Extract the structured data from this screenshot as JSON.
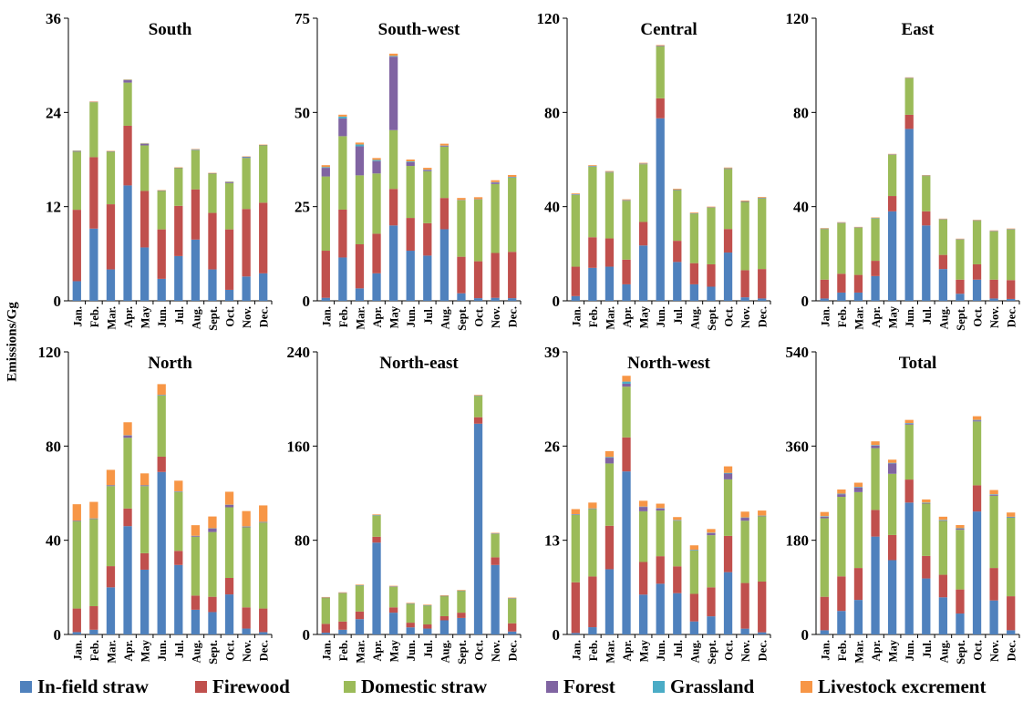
{
  "ylabel": "Emissions/Gg",
  "legend": [
    {
      "name": "In-field straw",
      "color": "#4F81BD"
    },
    {
      "name": "Firewood",
      "color": "#C0504D"
    },
    {
      "name": "Domestic straw",
      "color": "#9BBB59"
    },
    {
      "name": "Forest",
      "color": "#8064A2"
    },
    {
      "name": "Grassland",
      "color": "#4BACC6"
    },
    {
      "name": "Livestock excrement",
      "color": "#F79646"
    }
  ],
  "chart_data": [
    {
      "type": "bar",
      "stacked": true,
      "title": "South",
      "ylim": [
        0,
        36
      ],
      "yticks": [
        "0",
        "12",
        "24",
        "36"
      ],
      "categories": [
        "Jan.",
        "Feb.",
        "Mar.",
        "Apr.",
        "May",
        "Jun.",
        "Jul.",
        "Aug.",
        "Sept.",
        "Oct.",
        "Nov.",
        "Dec."
      ],
      "series": [
        {
          "name": "In-field straw",
          "values": [
            2.5,
            9.2,
            4.0,
            14.7,
            6.8,
            2.8,
            5.7,
            7.8,
            4.0,
            1.4,
            3.1,
            3.5
          ]
        },
        {
          "name": "Firewood",
          "values": [
            9.1,
            9.1,
            8.3,
            7.6,
            7.2,
            6.3,
            6.4,
            6.4,
            7.2,
            7.7,
            8.6,
            9.0
          ]
        },
        {
          "name": "Domestic straw",
          "values": [
            7.4,
            7.0,
            6.7,
            5.5,
            5.8,
            4.9,
            4.8,
            5.0,
            5.0,
            5.9,
            6.5,
            7.3
          ]
        },
        {
          "name": "Forest",
          "values": [
            0.05,
            0.05,
            0.05,
            0.3,
            0.2,
            0.05,
            0.05,
            0.05,
            0.05,
            0.1,
            0.1,
            0.05
          ]
        },
        {
          "name": "Grassland",
          "values": [
            0.05,
            0.0,
            0.0,
            0.05,
            0.05,
            0.0,
            0.0,
            0.05,
            0.0,
            0.05,
            0.05,
            0.0
          ]
        },
        {
          "name": "Livestock excrement",
          "values": [
            0.05,
            0.05,
            0.05,
            0.05,
            0.05,
            0.05,
            0.05,
            0.05,
            0.05,
            0.05,
            0.05,
            0.05
          ]
        }
      ]
    },
    {
      "type": "bar",
      "stacked": true,
      "title": "South-west",
      "ylim": [
        0,
        75
      ],
      "yticks": [
        "0",
        "25",
        "50",
        "75"
      ],
      "categories": [
        "Jan.",
        "Feb.",
        "Mar.",
        "Apr.",
        "May",
        "Jun.",
        "Jul.",
        "Aug.",
        "Sept.",
        "Oct.",
        "Nov.",
        "Dec."
      ],
      "series": [
        {
          "name": "In-field straw",
          "values": [
            0.8,
            11.5,
            3.3,
            7.3,
            20.0,
            13.3,
            12.0,
            19.0,
            2.0,
            0.7,
            0.8,
            0.7
          ]
        },
        {
          "name": "Firewood",
          "values": [
            12.5,
            12.7,
            11.7,
            10.5,
            9.7,
            8.7,
            8.6,
            8.3,
            9.7,
            9.8,
            11.9,
            12.3
          ]
        },
        {
          "name": "Domestic straw",
          "values": [
            19.7,
            19.5,
            18.3,
            16.0,
            15.6,
            13.8,
            13.8,
            13.6,
            15.0,
            16.4,
            18.3,
            19.7
          ]
        },
        {
          "name": "Forest",
          "values": [
            2.3,
            4.7,
            7.7,
            3.3,
            19.5,
            1.0,
            0.3,
            0.2,
            0.1,
            0.1,
            0.4,
            0.1
          ]
        },
        {
          "name": "Grassland",
          "values": [
            0.2,
            0.5,
            0.5,
            0.3,
            0.2,
            0.2,
            0.1,
            0.1,
            0.0,
            0.0,
            0.1,
            0.1
          ]
        },
        {
          "name": "Livestock excrement",
          "values": [
            0.5,
            0.5,
            0.5,
            0.5,
            0.6,
            0.5,
            0.5,
            0.5,
            0.5,
            0.5,
            0.5,
            0.5
          ]
        }
      ]
    },
    {
      "type": "bar",
      "stacked": true,
      "title": "Central",
      "ylim": [
        0,
        120
      ],
      "yticks": [
        "0",
        "40",
        "80",
        "120"
      ],
      "categories": [
        "Jan.",
        "Feb.",
        "Mar.",
        "Apr.",
        "May",
        "Jun.",
        "Jul.",
        "Aug.",
        "Sept.",
        "Oct.",
        "Nov.",
        "Dec."
      ],
      "series": [
        {
          "name": "In-field straw",
          "values": [
            2.0,
            14.0,
            14.5,
            7.0,
            23.5,
            77.5,
            16.5,
            7.0,
            6.0,
            20.5,
            1.5,
            1.0
          ]
        },
        {
          "name": "Firewood",
          "values": [
            12.5,
            13.0,
            12.0,
            10.5,
            10.0,
            8.5,
            9.0,
            9.0,
            9.5,
            10.0,
            11.5,
            12.5
          ]
        },
        {
          "name": "Domestic straw",
          "values": [
            30.5,
            30.0,
            28.0,
            25.0,
            24.5,
            22.0,
            21.5,
            21.0,
            24.0,
            25.5,
            29.0,
            30.0
          ]
        },
        {
          "name": "Forest",
          "values": [
            0.2,
            0.2,
            0.2,
            0.2,
            0.2,
            0.2,
            0.2,
            0.1,
            0.1,
            0.2,
            0.2,
            0.2
          ]
        },
        {
          "name": "Grassland",
          "values": [
            0.1,
            0.1,
            0.1,
            0.1,
            0.1,
            0.1,
            0.1,
            0.1,
            0.1,
            0.1,
            0.1,
            0.1
          ]
        },
        {
          "name": "Livestock excrement",
          "values": [
            0.3,
            0.3,
            0.3,
            0.3,
            0.3,
            0.3,
            0.3,
            0.3,
            0.3,
            0.3,
            0.3,
            0.3
          ]
        }
      ]
    },
    {
      "type": "bar",
      "stacked": true,
      "title": "East",
      "ylim": [
        0,
        120
      ],
      "yticks": [
        "0",
        "40",
        "80",
        "120"
      ],
      "categories": [
        "Jan.",
        "Feb.",
        "Mar.",
        "Apr.",
        "May",
        "Jun.",
        "Jul.",
        "Aug.",
        "Sept.",
        "Oct.",
        "Nov.",
        "Dec."
      ],
      "series": [
        {
          "name": "In-field straw",
          "values": [
            1.0,
            3.5,
            3.5,
            10.5,
            38.0,
            73.0,
            32.0,
            13.5,
            3.0,
            9.0,
            1.0,
            0.8
          ]
        },
        {
          "name": "Firewood",
          "values": [
            8.0,
            8.0,
            7.5,
            6.5,
            6.5,
            6.0,
            6.0,
            6.0,
            6.0,
            6.5,
            8.0,
            8.0
          ]
        },
        {
          "name": "Domestic straw",
          "values": [
            21.5,
            21.5,
            20.0,
            18.0,
            17.5,
            15.5,
            15.0,
            15.0,
            17.0,
            18.5,
            20.5,
            21.5
          ]
        },
        {
          "name": "Forest",
          "values": [
            0.1,
            0.1,
            0.1,
            0.1,
            0.1,
            0.1,
            0.1,
            0.1,
            0.1,
            0.1,
            0.1,
            0.1
          ]
        },
        {
          "name": "Grassland",
          "values": [
            0.1,
            0.1,
            0.1,
            0.1,
            0.1,
            0.1,
            0.1,
            0.1,
            0.1,
            0.1,
            0.1,
            0.1
          ]
        },
        {
          "name": "Livestock excrement",
          "values": [
            0.2,
            0.2,
            0.2,
            0.2,
            0.2,
            0.2,
            0.2,
            0.2,
            0.2,
            0.2,
            0.2,
            0.2
          ]
        }
      ]
    },
    {
      "type": "bar",
      "stacked": true,
      "title": "North",
      "ylim": [
        0,
        120
      ],
      "yticks": [
        "0",
        "40",
        "80",
        "120"
      ],
      "categories": [
        "Jan.",
        "Feb.",
        "Mar.",
        "Apr.",
        "May",
        "Jun.",
        "Jul.",
        "Aug.",
        "Sept.",
        "Oct.",
        "Nov.",
        "Dec."
      ],
      "series": [
        {
          "name": "In-field straw",
          "values": [
            1.0,
            2.0,
            20.0,
            46.0,
            27.5,
            69.0,
            29.5,
            10.5,
            9.5,
            17.0,
            2.5,
            1.0
          ]
        },
        {
          "name": "Firewood",
          "values": [
            10.0,
            10.0,
            9.0,
            7.5,
            7.0,
            6.5,
            6.0,
            6.0,
            6.5,
            7.0,
            9.0,
            10.0
          ]
        },
        {
          "name": "Domestic straw",
          "values": [
            37.0,
            37.0,
            34.0,
            30.0,
            28.5,
            26.0,
            25.0,
            25.0,
            27.5,
            30.0,
            34.0,
            36.5
          ]
        },
        {
          "name": "Forest",
          "values": [
            0.2,
            0.2,
            0.3,
            1.0,
            0.3,
            0.2,
            0.2,
            0.3,
            1.5,
            1.0,
            0.3,
            0.2
          ]
        },
        {
          "name": "Grassland",
          "values": [
            0.1,
            0.1,
            0.1,
            0.1,
            0.1,
            0.1,
            0.1,
            0.1,
            0.1,
            0.1,
            0.1,
            0.1
          ]
        },
        {
          "name": "Livestock excrement",
          "values": [
            7.0,
            7.0,
            6.5,
            5.5,
            5.0,
            4.5,
            4.5,
            4.5,
            5.0,
            5.5,
            6.5,
            7.0
          ]
        }
      ]
    },
    {
      "type": "bar",
      "stacked": true,
      "title": "North-east",
      "ylim": [
        0,
        240
      ],
      "yticks": [
        "0",
        "80",
        "160",
        "240"
      ],
      "categories": [
        "Jan.",
        "Feb.",
        "Mar.",
        "Apr.",
        "May",
        "Jun.",
        "Jul.",
        "Aug.",
        "Sept.",
        "Oct.",
        "Nov.",
        "Dec."
      ],
      "series": [
        {
          "name": "In-field straw",
          "values": [
            1.5,
            4.0,
            13.0,
            78.0,
            18.5,
            6.0,
            5.0,
            12.0,
            14.0,
            179.0,
            59.0,
            2.5
          ]
        },
        {
          "name": "Firewood",
          "values": [
            7.5,
            7.0,
            6.5,
            5.0,
            4.5,
            4.0,
            3.5,
            3.5,
            4.5,
            5.5,
            6.5,
            7.0
          ]
        },
        {
          "name": "Domestic straw",
          "values": [
            22.0,
            24.0,
            22.0,
            18.0,
            17.5,
            16.0,
            16.0,
            17.0,
            18.5,
            18.0,
            20.0,
            21.0
          ]
        },
        {
          "name": "Forest",
          "values": [
            0.1,
            0.1,
            0.1,
            0.2,
            0.1,
            0.1,
            0.1,
            0.1,
            0.1,
            0.2,
            0.1,
            0.1
          ]
        },
        {
          "name": "Grassland",
          "values": [
            0.2,
            0.2,
            0.2,
            0.3,
            0.2,
            0.2,
            0.2,
            0.2,
            0.2,
            0.3,
            0.2,
            0.2
          ]
        },
        {
          "name": "Livestock excrement",
          "values": [
            0.5,
            0.5,
            0.5,
            0.5,
            0.5,
            0.5,
            0.5,
            0.5,
            0.5,
            0.5,
            0.5,
            0.5
          ]
        }
      ]
    },
    {
      "type": "bar",
      "stacked": true,
      "title": "North-west",
      "ylim": [
        0,
        39
      ],
      "yticks": [
        "0",
        "13",
        "26",
        "39"
      ],
      "categories": [
        "Jan.",
        "Feb.",
        "Mar.",
        "Apr.",
        "May",
        "Jun.",
        "Jul.",
        "Aug.",
        "Sept.",
        "Oct.",
        "Nov.",
        "Dec."
      ],
      "series": [
        {
          "name": "In-field straw",
          "values": [
            0.2,
            1.0,
            9.0,
            22.5,
            5.5,
            7.0,
            5.7,
            1.8,
            2.5,
            8.6,
            0.8,
            0.3
          ]
        },
        {
          "name": "Firewood",
          "values": [
            7.0,
            7.0,
            6.0,
            4.7,
            4.5,
            3.8,
            3.7,
            3.8,
            4.0,
            5.0,
            6.3,
            7.0
          ]
        },
        {
          "name": "Domestic straw",
          "values": [
            9.3,
            9.3,
            8.6,
            7.0,
            7.0,
            6.3,
            6.3,
            6.0,
            7.2,
            7.8,
            8.6,
            9.0
          ]
        },
        {
          "name": "Forest",
          "values": [
            0.05,
            0.05,
            0.8,
            0.4,
            0.6,
            0.3,
            0.05,
            0.05,
            0.3,
            0.8,
            0.4,
            0.05
          ]
        },
        {
          "name": "Grassland",
          "values": [
            0.05,
            0.05,
            0.1,
            0.3,
            0.05,
            0.05,
            0.05,
            0.05,
            0.05,
            0.1,
            0.05,
            0.05
          ]
        },
        {
          "name": "Livestock excrement",
          "values": [
            0.7,
            0.8,
            0.8,
            0.8,
            0.8,
            0.6,
            0.4,
            0.6,
            0.5,
            0.9,
            0.8,
            0.7
          ]
        }
      ]
    },
    {
      "type": "bar",
      "stacked": true,
      "title": "Total",
      "ylim": [
        0,
        540
      ],
      "yticks": [
        "0",
        "180",
        "360",
        "540"
      ],
      "categories": [
        "Jan.",
        "Feb.",
        "Mar.",
        "Apr.",
        "May",
        "Jun.",
        "Jul.",
        "Aug.",
        "Sept.",
        "Oct.",
        "Nov.",
        "Dec."
      ],
      "series": [
        {
          "name": "In-field straw",
          "values": [
            8.0,
            45.0,
            66.0,
            187.0,
            142.0,
            252.0,
            107.0,
            71.0,
            40.0,
            235.0,
            65.0,
            8.0
          ]
        },
        {
          "name": "Firewood",
          "values": [
            64.0,
            66.0,
            61.0,
            51.0,
            48.0,
            44.0,
            43.0,
            43.0,
            46.0,
            50.0,
            62.0,
            65.0
          ]
        },
        {
          "name": "Domestic straw",
          "values": [
            150.0,
            152.0,
            145.0,
            118.0,
            117.0,
            105.0,
            100.0,
            103.0,
            114.0,
            122.0,
            138.0,
            150.0
          ]
        },
        {
          "name": "Forest",
          "values": [
            3.0,
            5.0,
            9.0,
            5.0,
            20.0,
            2.0,
            1.0,
            1.0,
            2.0,
            2.0,
            2.0,
            1.0
          ]
        },
        {
          "name": "Grassland",
          "values": [
            1.0,
            1.0,
            1.0,
            1.0,
            1.0,
            1.0,
            1.0,
            1.0,
            1.0,
            1.0,
            1.0,
            1.0
          ]
        },
        {
          "name": "Livestock excrement",
          "values": [
            8.0,
            8.0,
            8.0,
            7.0,
            6.0,
            6.0,
            6.0,
            6.0,
            6.0,
            7.0,
            8.0,
            8.0
          ]
        }
      ]
    }
  ]
}
